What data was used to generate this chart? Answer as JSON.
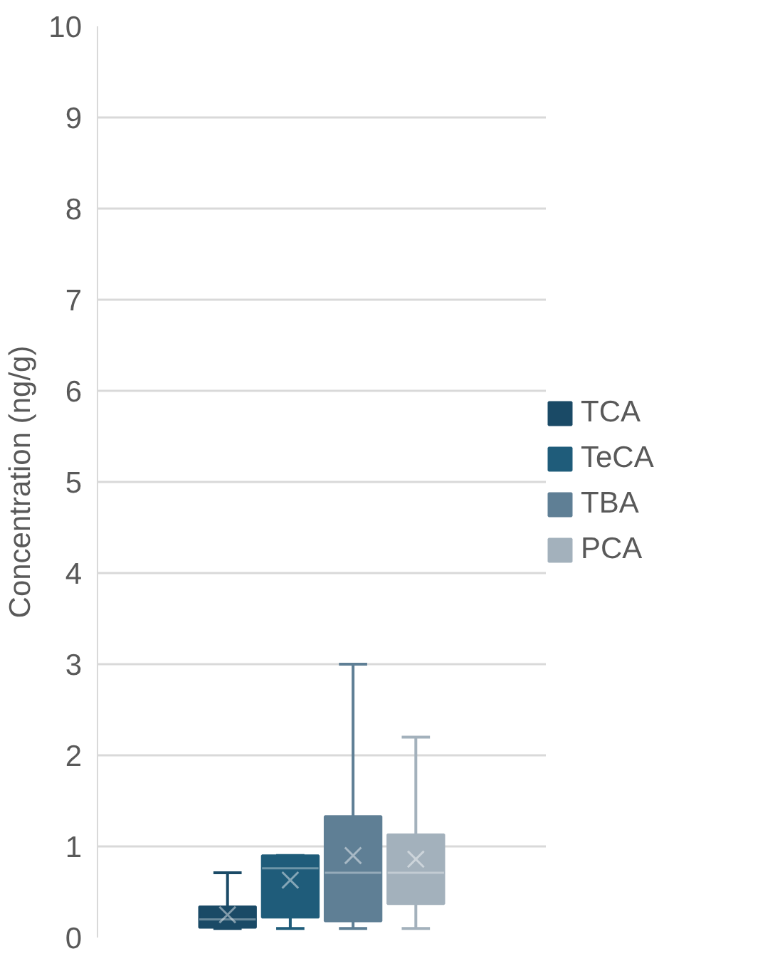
{
  "chart_data": {
    "type": "box",
    "ylabel": "Concentration (ng/g)",
    "categories": [
      null
    ],
    "series": [
      {
        "name": "TCA",
        "color": "#1a4a66",
        "boxes": [
          {
            "low": 0.1,
            "q1": 0.11,
            "median": 0.2,
            "q3": 0.34,
            "high": 0.71,
            "mean": 0.25
          }
        ]
      },
      {
        "name": "TeCA",
        "color": "#1f5c7a",
        "boxes": [
          {
            "low": 0.1,
            "q1": 0.22,
            "median": 0.76,
            "q3": 0.9,
            "high": 0.9,
            "mean": 0.63
          }
        ]
      },
      {
        "name": "TBA",
        "color": "#5f7f95",
        "boxes": [
          {
            "low": 0.1,
            "q1": 0.18,
            "median": 0.71,
            "q3": 1.33,
            "high": 3.0,
            "mean": 0.9
          }
        ]
      },
      {
        "name": "PCA",
        "color": "#a3b1bc",
        "boxes": [
          {
            "low": 0.1,
            "q1": 0.37,
            "median": 0.71,
            "q3": 1.13,
            "high": 2.2,
            "mean": 0.86
          }
        ]
      }
    ],
    "ylim": [
      0,
      10
    ],
    "yticks": [
      0,
      1,
      2,
      3,
      4,
      5,
      6,
      7,
      8,
      9,
      10
    ],
    "grid": "y",
    "legend": "right",
    "marker": "cross"
  }
}
